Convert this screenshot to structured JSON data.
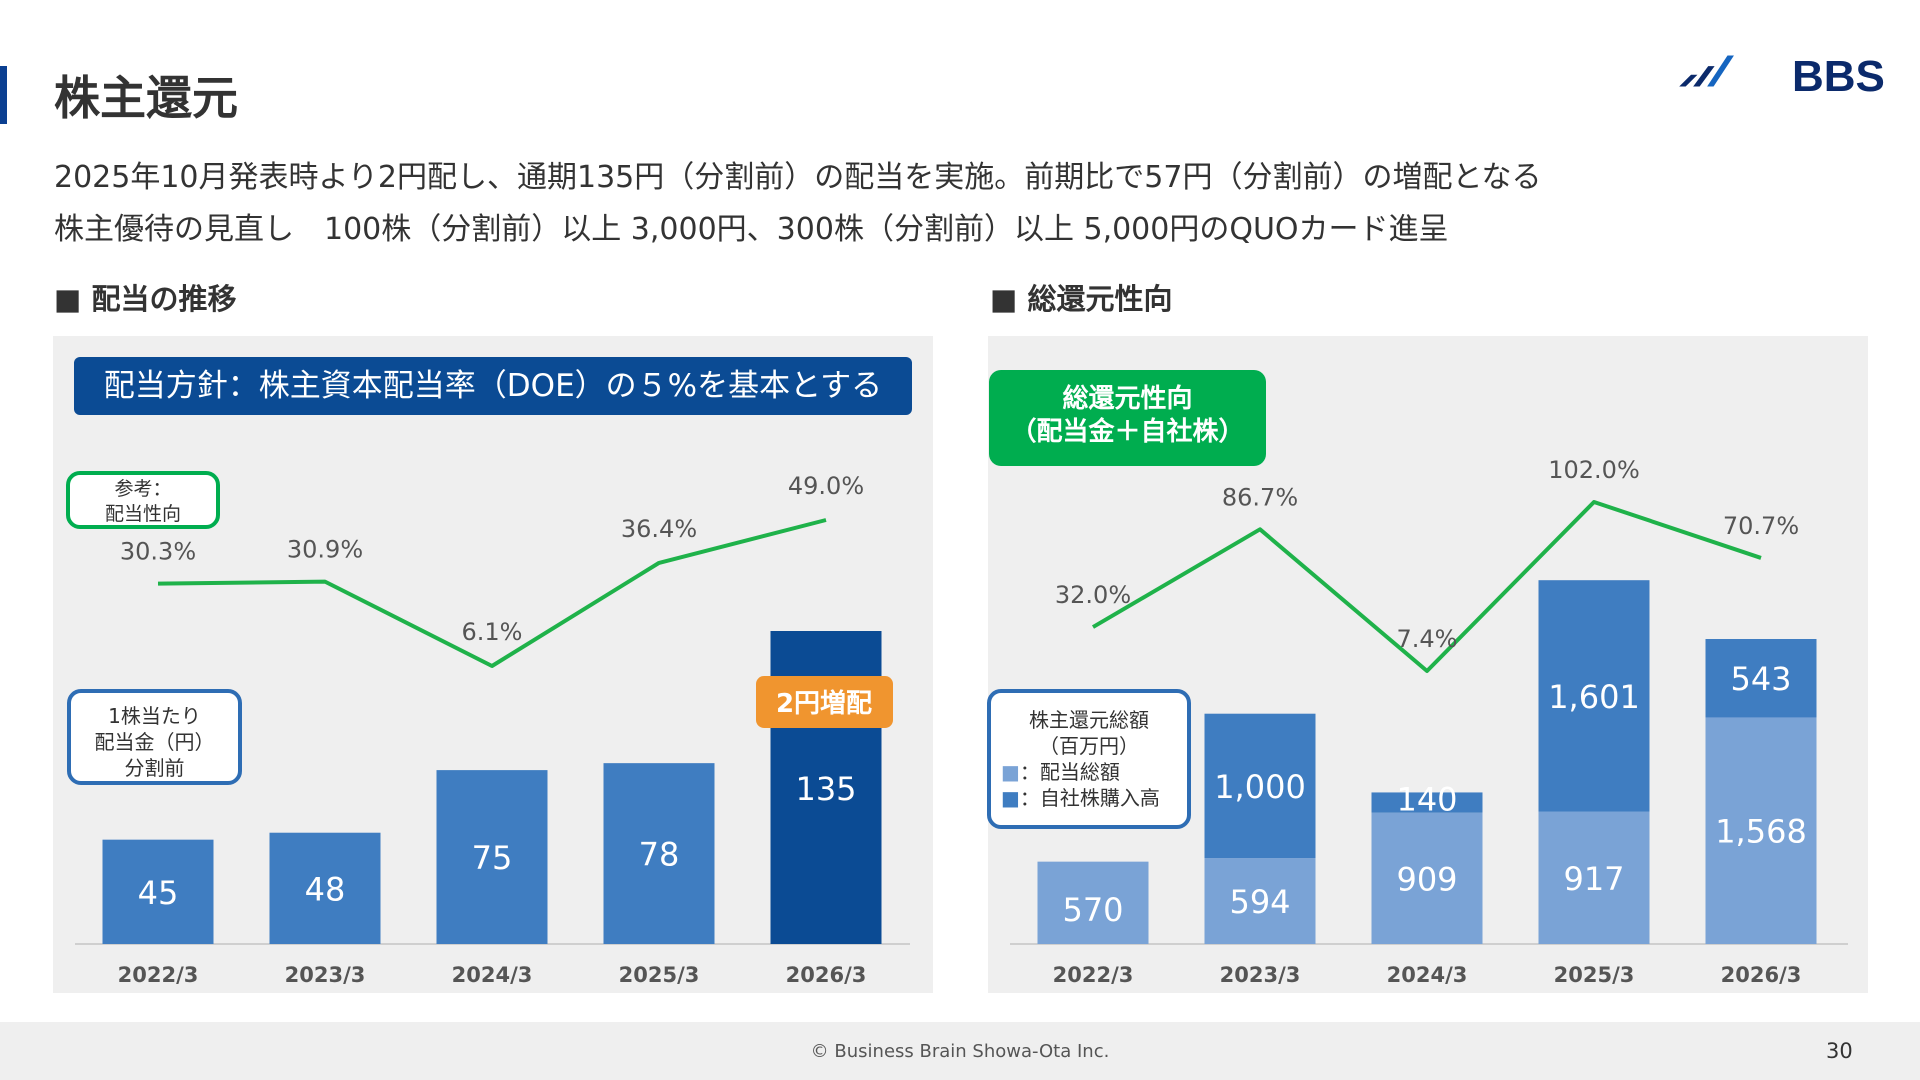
{
  "header": {
    "title": "株主還元",
    "logo_text": "BBS",
    "line1": "2025年10月発表時より2円配し、通期135円（分割前）の配当を実施。前期比で57円（分割前）の増配となる",
    "line2": "株主優待の見直し　100株（分割前）以上 3,000円、300株（分割前）以上 5,000円のQUOカード進呈"
  },
  "left_section": {
    "heading": "■ 配当の推移",
    "policy_banner": "配当方針：株主資本配当率（DOE）の５%を基本とする",
    "ratio_note": [
      "参考：",
      "配当性向"
    ],
    "dps_note": [
      "1株当たり",
      "配当金（円）",
      "分割前"
    ],
    "increase_badge": "2円増配"
  },
  "right_section": {
    "heading": "■ 総還元性向",
    "label": [
      "総還元性向",
      "（配当金＋自社株）"
    ],
    "legend_title": [
      "株主還元総額",
      "（百万円）"
    ],
    "legend_items": [
      {
        "marker": "■",
        "text": "：配当総額",
        "color": "#7aa3d6"
      },
      {
        "marker": "■",
        "text": "：自社株購入高",
        "color": "#3f7dc1"
      }
    ]
  },
  "chart_data": [
    {
      "type": "bar",
      "categories": [
        "2022/3",
        "2023/3",
        "2024/3",
        "2025/3",
        "2026/3"
      ],
      "series": [
        {
          "values": [
            45,
            48,
            75,
            78,
            135
          ],
          "labels": [
            "45",
            "48",
            "75",
            "78",
            "135"
          ]
        }
      ],
      "line": {
        "values": [
          30.3,
          30.9,
          6.1,
          36.4,
          49.0
        ],
        "labels": [
          "30.3%",
          "30.9%",
          "6.1%",
          "36.4%",
          "49.0%"
        ]
      },
      "colors": {
        "bar": "#3f7dc1",
        "highlight": "#0b4b94",
        "line": "#1fb24a"
      }
    },
    {
      "type": "bar",
      "categories": [
        "2022/3",
        "2023/3",
        "2024/3",
        "2025/3",
        "2026/3"
      ],
      "series": [
        {
          "values": [
            570,
            594,
            909,
            917,
            1568
          ],
          "labels": [
            "570",
            "594",
            "909",
            "917",
            "1,568"
          ]
        },
        {
          "values": [
            0,
            1000,
            140,
            1601,
            543
          ],
          "labels": [
            "",
            "1,000",
            "140",
            "1,601",
            "543"
          ]
        }
      ],
      "line": {
        "values": [
          32.0,
          86.7,
          7.4,
          102.0,
          70.7
        ],
        "labels": [
          "32.0%",
          "86.7%",
          "7.4%",
          "102.0%",
          "70.7%"
        ]
      },
      "colors": {
        "dividend": "#7aa3d6",
        "buyback": "#3f7dc1",
        "line": "#1fb24a"
      }
    }
  ],
  "footer": {
    "copyright": "© Business Brain Showa-Ota Inc.",
    "page_number": "30"
  }
}
